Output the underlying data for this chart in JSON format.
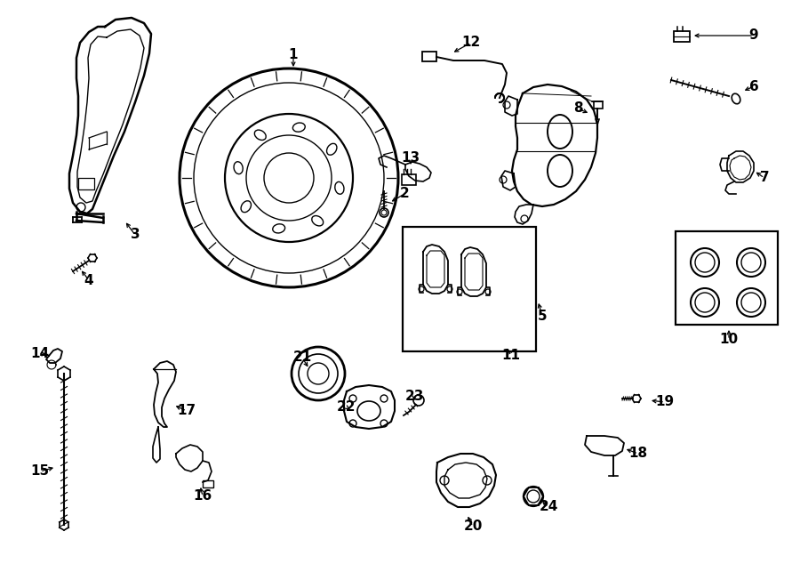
{
  "bg_color": "#ffffff",
  "lc": "#000000",
  "figsize": [
    9.0,
    6.61
  ],
  "dpi": 100,
  "lw": 1.2
}
